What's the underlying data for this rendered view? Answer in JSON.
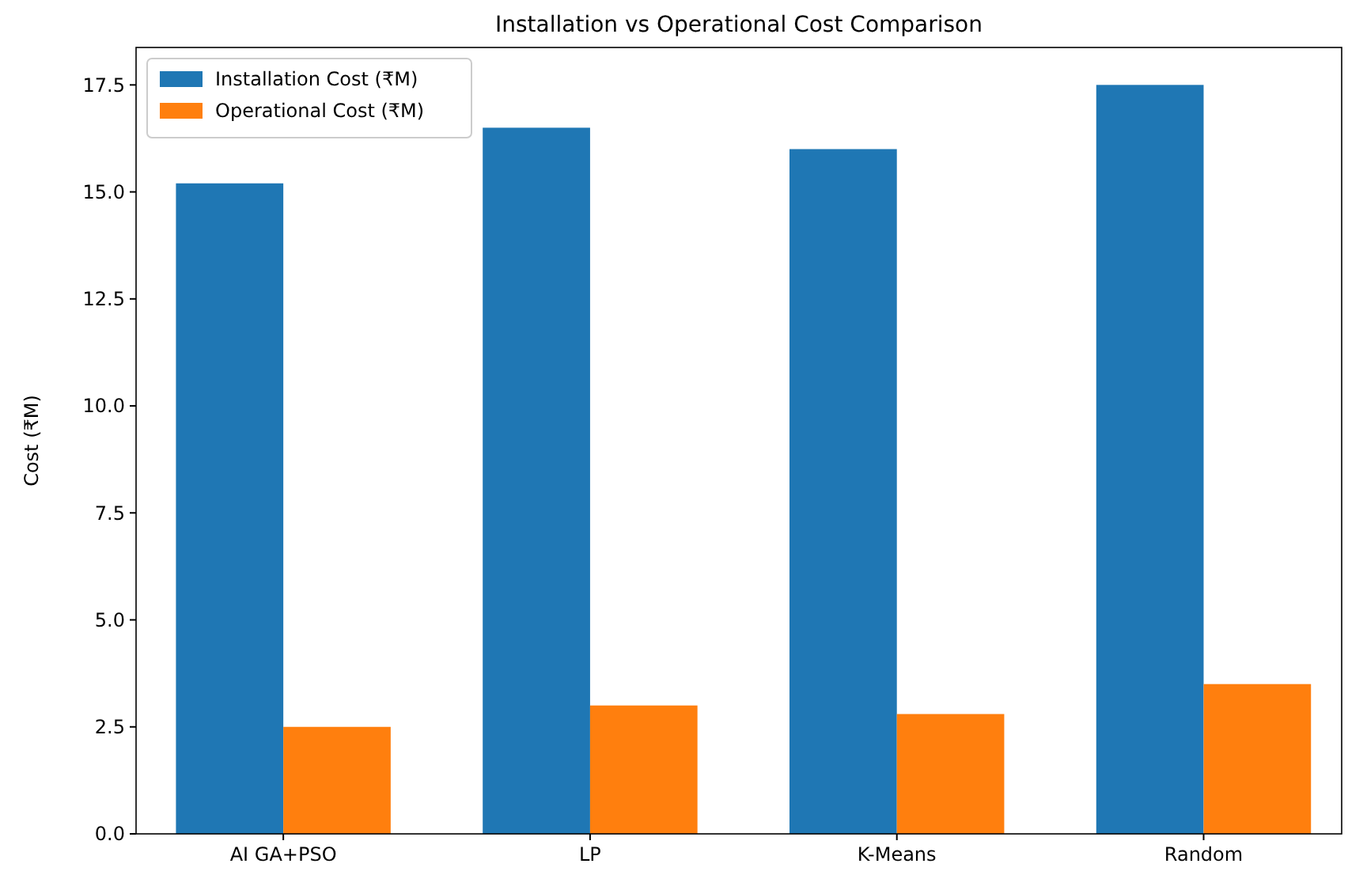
{
  "chart_data": {
    "type": "bar",
    "title": "Installation vs Operational Cost Comparison",
    "ylabel": "Cost (₹M)",
    "categories": [
      "AI GA+PSO",
      "LP",
      "K-Means",
      "Random"
    ],
    "series": [
      {
        "name": "Installation Cost (₹M)",
        "color": "#1f77b4",
        "values": [
          15.2,
          16.5,
          16.0,
          17.5
        ]
      },
      {
        "name": "Operational Cost (₹M)",
        "color": "#ff7f0e",
        "values": [
          2.5,
          3.0,
          2.8,
          3.5
        ]
      }
    ],
    "ylim": [
      0,
      18.375
    ],
    "yticks": [
      {
        "value": 0,
        "label": "0.0"
      },
      2.5,
      {
        "value": 5,
        "label": "5.0"
      },
      7.5,
      {
        "value": 10,
        "label": "10.0"
      },
      12.5,
      {
        "value": 15,
        "label": "15.0"
      },
      17.5
    ],
    "legend": "top left",
    "grid": false
  }
}
